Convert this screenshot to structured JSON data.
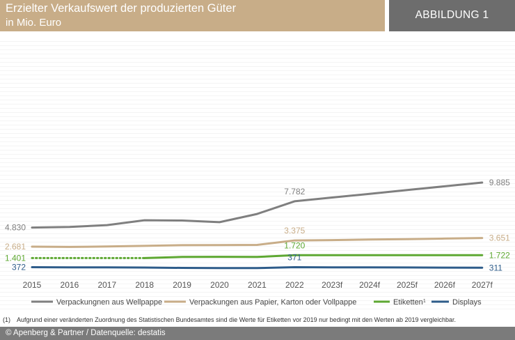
{
  "header": {
    "title": "Erzielter Verkaufswert der produzierten Güter",
    "subtitle": "in Mio. Euro",
    "figure_label": "ABBILDUNG 1"
  },
  "footnote": {
    "marker": "(1)",
    "text": "Aufgrund einer veränderten Zuordnung des Statistischen Bundesamtes sind die Werte für Etiketten vor 2019 nur bedingt mit den Werten ab 2019 vergleichbar."
  },
  "footer": {
    "source": "© Apenberg & Partner / Datenquelle: destatis"
  },
  "chart_data": {
    "type": "line",
    "categories": [
      "2015",
      "2016",
      "2017",
      "2018",
      "2019",
      "2020",
      "2021",
      "2022",
      "2023f",
      "2024f",
      "2025f",
      "2026f",
      "2027f"
    ],
    "series": [
      {
        "name": "Verpackungnen aus Wellpappe",
        "color": "#7f7f7f",
        "values": [
          4830,
          4900,
          5100,
          5650,
          5620,
          5430,
          6350,
          7782,
          8200,
          8620,
          9040,
          9460,
          9885
        ]
      },
      {
        "name": "Verpackungen aus Papier, Karton oder Vollpappe",
        "color": "#c8ad88",
        "values": [
          2681,
          2650,
          2700,
          2770,
          2850,
          2860,
          2880,
          3375,
          3420,
          3480,
          3530,
          3590,
          3651
        ]
      },
      {
        "name": "Etiketten",
        "name_sup": "1",
        "color": "#5ea832",
        "dotted_until_index": 3,
        "values": [
          1401,
          1401,
          1401,
          1401,
          1520,
          1540,
          1520,
          1720,
          1722,
          1722,
          1722,
          1722,
          1722
        ]
      },
      {
        "name": "Displays",
        "color": "#2e5c8a",
        "values": [
          372,
          360,
          352,
          330,
          290,
          270,
          272,
          371,
          358,
          350,
          340,
          325,
          311
        ]
      }
    ],
    "data_labels": [
      {
        "series": 0,
        "index": 0,
        "text": "4.830",
        "pos": "left"
      },
      {
        "series": 0,
        "index": 7,
        "text": "7.782",
        "pos": "above"
      },
      {
        "series": 0,
        "index": 12,
        "text": "9.885",
        "pos": "right"
      },
      {
        "series": 1,
        "index": 0,
        "text": "2.681",
        "pos": "left"
      },
      {
        "series": 1,
        "index": 7,
        "text": "3.375",
        "pos": "above"
      },
      {
        "series": 1,
        "index": 12,
        "text": "3.651",
        "pos": "right"
      },
      {
        "series": 2,
        "index": 0,
        "text": "1.401",
        "pos": "left"
      },
      {
        "series": 2,
        "index": 7,
        "text": "1.720",
        "pos": "above"
      },
      {
        "series": 2,
        "index": 12,
        "text": "1.722",
        "pos": "right"
      },
      {
        "series": 3,
        "index": 0,
        "text": "372",
        "pos": "left"
      },
      {
        "series": 3,
        "index": 7,
        "text": "371",
        "pos": "above"
      },
      {
        "series": 3,
        "index": 12,
        "text": "311",
        "pos": "right"
      }
    ],
    "ylim": [
      0,
      11000
    ],
    "legend_position": "bottom",
    "grid": true
  }
}
